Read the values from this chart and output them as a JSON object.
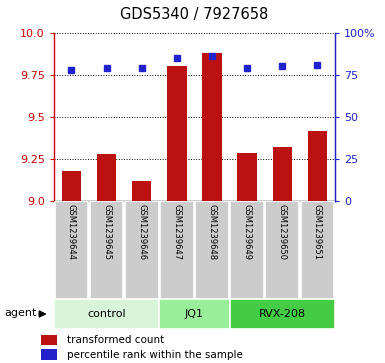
{
  "title": "GDS5340 / 7927658",
  "samples": [
    "GSM1239644",
    "GSM1239645",
    "GSM1239646",
    "GSM1239647",
    "GSM1239648",
    "GSM1239649",
    "GSM1239650",
    "GSM1239651"
  ],
  "red_values": [
    9.18,
    9.28,
    9.12,
    9.8,
    9.88,
    9.29,
    9.32,
    9.42
  ],
  "blue_values": [
    78,
    79,
    79,
    85,
    86,
    79,
    80,
    81
  ],
  "ylim_left": [
    9.0,
    10.0
  ],
  "ylim_right": [
    0,
    100
  ],
  "yticks_left": [
    9.0,
    9.25,
    9.5,
    9.75,
    10.0
  ],
  "yticks_right": [
    0,
    25,
    50,
    75,
    100
  ],
  "ytick_labels_right": [
    "0",
    "25",
    "50",
    "75",
    "100%"
  ],
  "groups": [
    {
      "label": "control",
      "start": 0,
      "end": 3,
      "color": "#d9f5d9"
    },
    {
      "label": "JQ1",
      "start": 3,
      "end": 5,
      "color": "#99ee99"
    },
    {
      "label": "RVX-208",
      "start": 5,
      "end": 8,
      "color": "#44cc44"
    }
  ],
  "bar_color": "#bb1111",
  "dot_color": "#2222cc",
  "sample_box_color": "#cccccc",
  "legend_red": "transformed count",
  "legend_blue": "percentile rank within the sample",
  "agent_label": "agent"
}
